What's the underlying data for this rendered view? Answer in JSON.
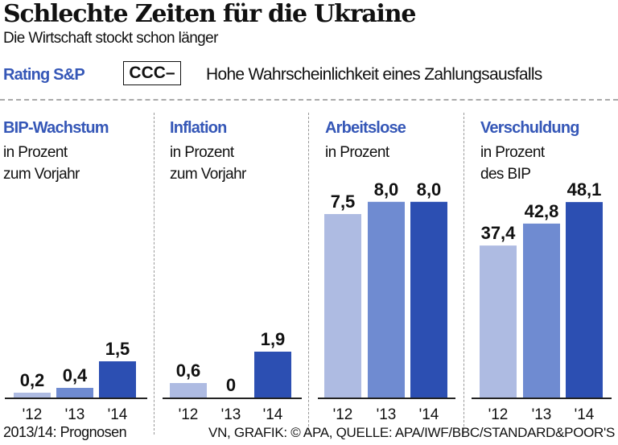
{
  "header": {
    "title": "Schlechte Zeiten für die Ukraine",
    "subtitle": "Die Wirtschaft stockt schon länger"
  },
  "rating": {
    "label": "Rating S&P",
    "value": "CCC–",
    "description": "Hohe Wahrscheinlichkeit eines Zahlungsausfalls"
  },
  "colors": {
    "accent": "#3557b7",
    "year_colors": [
      "#aebbe2",
      "#6f8bd1",
      "#2c4fb2"
    ]
  },
  "chart_data": [
    {
      "type": "bar",
      "title": "BIP-Wachstum",
      "subtitle": "in Prozent\nzum Vorjahr",
      "categories": [
        "'12",
        "'13",
        "'14"
      ],
      "values": [
        0.2,
        0.4,
        1.5
      ],
      "labels": [
        "0,2",
        "0,4",
        "1,5"
      ]
    },
    {
      "type": "bar",
      "title": "Inflation",
      "subtitle": "in Prozent\nzum Vorjahr",
      "categories": [
        "'12",
        "'13",
        "'14"
      ],
      "values": [
        0.6,
        0,
        1.9
      ],
      "labels": [
        "0,6",
        "0",
        "1,9"
      ]
    },
    {
      "type": "bar",
      "title": "Arbeitslose",
      "subtitle": "in Prozent",
      "categories": [
        "'12",
        "'13",
        "'14"
      ],
      "values": [
        7.5,
        8.0,
        8.0
      ],
      "labels": [
        "7,5",
        "8,0",
        "8,0"
      ]
    },
    {
      "type": "bar",
      "title": "Verschuldung",
      "subtitle": "in Prozent\ndes BIP",
      "categories": [
        "'12",
        "'13",
        "'14"
      ],
      "values": [
        37.4,
        42.8,
        48.1
      ],
      "labels": [
        "37,4",
        "42,8",
        "48,1"
      ]
    }
  ],
  "footer": {
    "note": "2013/14: Prognosen",
    "credit": "VN, GRAFIK: © APA, QUELLE: APA/IWF/BBC/STANDARD&POOR'S"
  }
}
